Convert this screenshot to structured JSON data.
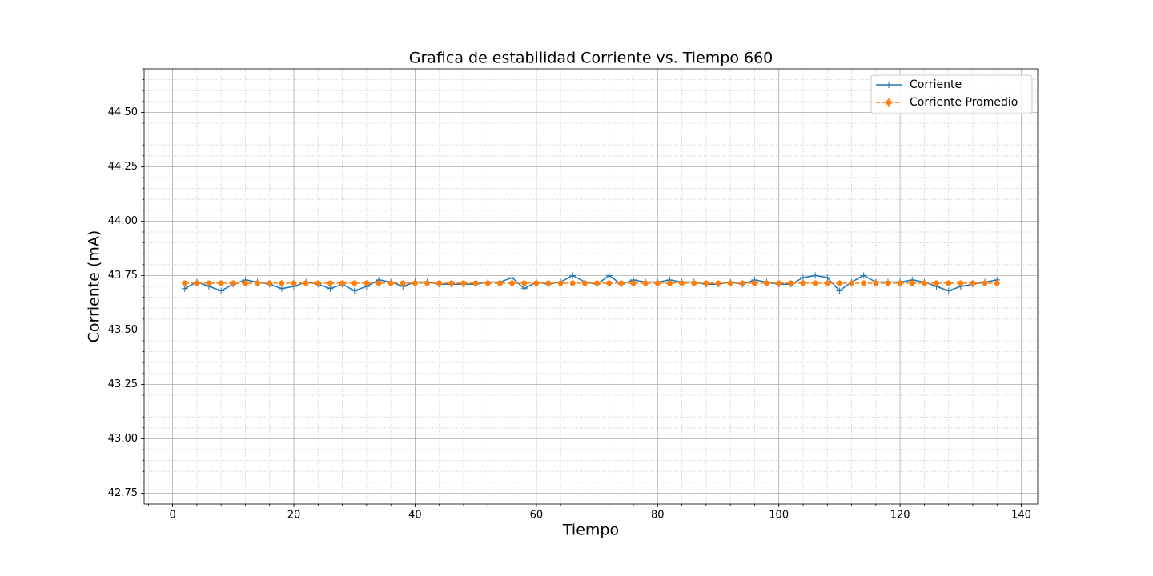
{
  "chart_data": {
    "type": "line",
    "title": "Grafica de estabilidad Corriente vs. Tiempo 660",
    "xlabel": "Tiempo",
    "ylabel": "Corriente (mA)",
    "x": [
      2,
      4,
      6,
      8,
      10,
      12,
      14,
      16,
      18,
      20,
      22,
      24,
      26,
      28,
      30,
      32,
      34,
      36,
      38,
      40,
      42,
      44,
      46,
      48,
      50,
      52,
      54,
      56,
      58,
      60,
      62,
      64,
      66,
      68,
      70,
      72,
      74,
      76,
      78,
      80,
      82,
      84,
      86,
      88,
      90,
      92,
      94,
      96,
      98,
      100,
      102,
      104,
      106,
      108,
      110,
      112,
      114,
      116,
      118,
      120,
      122,
      124,
      126,
      128,
      130,
      132,
      134,
      136
    ],
    "series": [
      {
        "name": "Corriente",
        "color": "#1f77b4",
        "marker": "+",
        "linestyle": "solid",
        "values": [
          43.69,
          43.72,
          43.7,
          43.68,
          43.71,
          43.73,
          43.72,
          43.71,
          43.69,
          43.7,
          43.72,
          43.71,
          43.69,
          43.71,
          43.68,
          43.7,
          43.73,
          43.72,
          43.7,
          43.72,
          43.72,
          43.71,
          43.71,
          43.71,
          43.71,
          43.72,
          43.72,
          43.74,
          43.69,
          43.72,
          43.71,
          43.72,
          43.75,
          43.72,
          43.71,
          43.75,
          43.71,
          43.73,
          43.72,
          43.72,
          43.73,
          43.72,
          43.72,
          43.71,
          43.71,
          43.72,
          43.71,
          43.73,
          43.72,
          43.71,
          43.71,
          43.74,
          43.75,
          43.74,
          43.68,
          43.72,
          43.75,
          43.72,
          43.72,
          43.72,
          43.73,
          43.72,
          43.7,
          43.68,
          43.7,
          43.71,
          43.72,
          43.73
        ]
      },
      {
        "name": "Corriente Promedio",
        "color": "#ff7f0e",
        "marker": "o",
        "linestyle": "dashed",
        "values": [
          43.715,
          43.715,
          43.715,
          43.715,
          43.715,
          43.715,
          43.715,
          43.715,
          43.715,
          43.715,
          43.715,
          43.715,
          43.715,
          43.715,
          43.715,
          43.715,
          43.715,
          43.715,
          43.715,
          43.715,
          43.715,
          43.715,
          43.715,
          43.715,
          43.715,
          43.715,
          43.715,
          43.715,
          43.715,
          43.715,
          43.715,
          43.715,
          43.715,
          43.715,
          43.715,
          43.715,
          43.715,
          43.715,
          43.715,
          43.715,
          43.715,
          43.715,
          43.715,
          43.715,
          43.715,
          43.715,
          43.715,
          43.715,
          43.715,
          43.715,
          43.715,
          43.715,
          43.715,
          43.715,
          43.715,
          43.715,
          43.715,
          43.715,
          43.715,
          43.715,
          43.715,
          43.715,
          43.715,
          43.715,
          43.715,
          43.715,
          43.715,
          43.715
        ]
      }
    ],
    "xlim": [
      -4.7,
      142.7
    ],
    "xticks": [
      0,
      20,
      40,
      60,
      80,
      100,
      120,
      140
    ],
    "ylim": [
      42.7,
      44.7
    ],
    "yticks": [
      {
        "value": 42.75,
        "label": "42.75"
      },
      {
        "value": 43.0,
        "label": "43.00"
      },
      {
        "value": 43.25,
        "label": "43.25"
      },
      {
        "value": 43.5,
        "label": "43.50"
      },
      {
        "value": 43.75,
        "label": "43.75"
      },
      {
        "value": 44.0,
        "label": "44.00"
      },
      {
        "value": 44.25,
        "label": "44.25"
      },
      {
        "value": 44.5,
        "label": "44.50"
      }
    ],
    "grid": true,
    "minor_grid": true,
    "legend": "upper right"
  }
}
